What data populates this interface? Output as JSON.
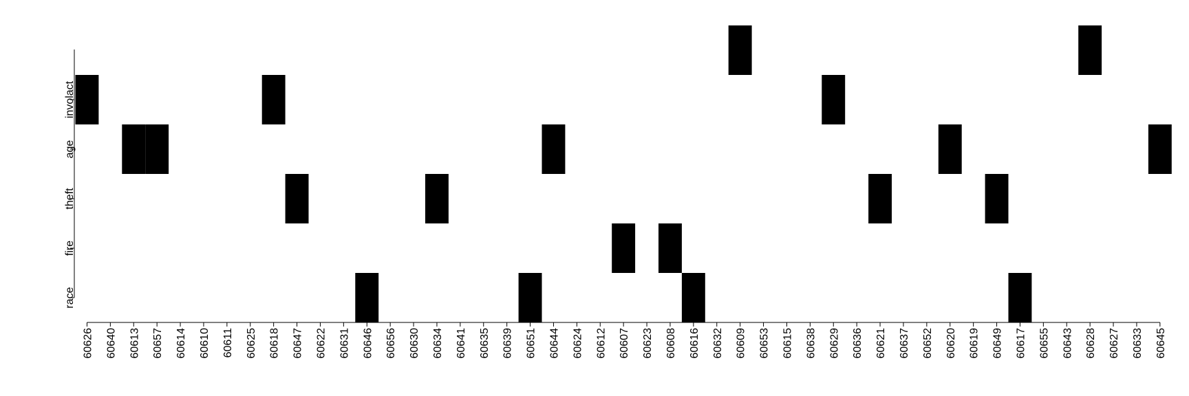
{
  "chart_data": {
    "type": "heatmap",
    "title": "",
    "xlabel": "",
    "ylabel": "",
    "grid": false,
    "colors": {
      "filled": "#000000",
      "empty": "#ffffff"
    },
    "x_categories": [
      "60626",
      "60640",
      "60613",
      "60657",
      "60614",
      "60610",
      "60611",
      "60625",
      "60618",
      "60647",
      "60622",
      "60631",
      "60646",
      "60656",
      "60630",
      "60634",
      "60641",
      "60635",
      "60639",
      "60651",
      "60644",
      "60624",
      "60612",
      "60607",
      "60623",
      "60608",
      "60616",
      "60632",
      "60609",
      "60653",
      "60615",
      "60638",
      "60629",
      "60636",
      "60621",
      "60637",
      "60652",
      "60620",
      "60619",
      "60649",
      "60617",
      "60655",
      "60643",
      "60628",
      "60627",
      "60633",
      "60645"
    ],
    "y_categories": [
      "race",
      "fire",
      "theft",
      "age",
      "involact"
    ],
    "cells": [
      {
        "x": "60626",
        "y": "involact"
      },
      {
        "x": "60618",
        "y": "involact"
      },
      {
        "x": "60629",
        "y": "involact"
      },
      {
        "x": "60613",
        "y": "age"
      },
      {
        "x": "60657",
        "y": "age"
      },
      {
        "x": "60644",
        "y": "age"
      },
      {
        "x": "60620",
        "y": "age"
      },
      {
        "x": "60645",
        "y": "age"
      },
      {
        "x": "60647",
        "y": "theft"
      },
      {
        "x": "60634",
        "y": "theft"
      },
      {
        "x": "60621",
        "y": "theft"
      },
      {
        "x": "60649",
        "y": "theft"
      },
      {
        "x": "60607",
        "y": "fire"
      },
      {
        "x": "60608",
        "y": "fire"
      },
      {
        "x": "60646",
        "y": "race"
      },
      {
        "x": "60651",
        "y": "race"
      },
      {
        "x": "60616",
        "y": "race"
      },
      {
        "x": "60617",
        "y": "race"
      },
      {
        "x": "60609",
        "y": "above-top"
      },
      {
        "x": "60628",
        "y": "above-top"
      }
    ]
  }
}
